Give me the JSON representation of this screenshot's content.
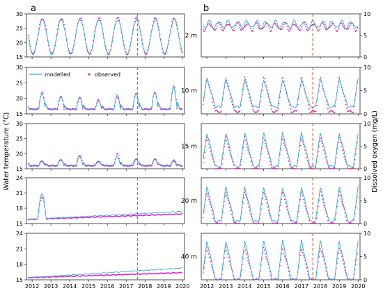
{
  "figure": {
    "panel_labels": [
      "a",
      "b"
    ],
    "left_ylabel": "Water temperature (°C)",
    "right_ylabel": "Dissolved oxygen (mg/L)",
    "depths": [
      "2 m",
      "10 m",
      "15 m",
      "20 m",
      "40 m"
    ],
    "legend": {
      "modelled": "modelled",
      "observed": "observed"
    },
    "colors": {
      "modelled": "#2aa7d8",
      "observed": "#e020d0",
      "divider": "#e8591a"
    }
  },
  "chart_data": [
    {
      "type": "line",
      "panel": "a",
      "depth": "2 m",
      "xlim": [
        2011.7,
        2020.1
      ],
      "ylim": [
        15,
        30
      ],
      "yticks": [
        "15",
        "20",
        "25",
        "30"
      ],
      "xticks": [
        "2012",
        "2013",
        "2014",
        "2015",
        "2016",
        "2017",
        "2018",
        "2019",
        "2020"
      ],
      "series": [
        {
          "name": "modelled",
          "style": "seasonal",
          "min": 16,
          "max": 28
        },
        {
          "name": "observed",
          "style": "seasonal",
          "min": 16,
          "max": 28.5
        }
      ],
      "divider_x": 2017.6
    },
    {
      "type": "line",
      "panel": "a",
      "depth": "10 m",
      "xlim": [
        2011.7,
        2020.1
      ],
      "ylim": [
        15,
        30
      ],
      "yticks": [
        "15",
        "20",
        "25",
        "30"
      ],
      "xticks": [
        "2012",
        "2013",
        "2014",
        "2015",
        "2016",
        "2017",
        "2018",
        "2019",
        "2020"
      ],
      "series": [
        {
          "name": "modelled",
          "style": "mixing",
          "min": 16.5,
          "peaks": [
            22.5,
            21.5,
            20.5,
            20.5,
            19,
            21,
            21.5,
            22,
            23.5
          ]
        },
        {
          "name": "observed",
          "style": "mixing",
          "min": 16.5,
          "peaks": [
            23.5,
            22,
            20.5,
            20,
            19.5,
            20.5,
            21.5,
            22,
            24
          ]
        }
      ],
      "divider_x": 2017.6
    },
    {
      "type": "line",
      "panel": "a",
      "depth": "15 m",
      "xlim": [
        2011.7,
        2020.1
      ],
      "ylim": [
        15,
        30
      ],
      "yticks": [
        "15",
        "20",
        "25",
        "30"
      ],
      "xticks": [
        "2012",
        "2013",
        "2014",
        "2015",
        "2016",
        "2017",
        "2018",
        "2019",
        "2020"
      ],
      "series": [
        {
          "name": "modelled",
          "style": "mixing",
          "min": 16,
          "peaks": [
            22.5,
            17.5,
            18,
            19,
            17.5,
            19,
            18.5,
            18.5,
            18
          ]
        },
        {
          "name": "observed",
          "style": "mixing",
          "min": 16,
          "peaks": [
            21,
            17.5,
            18,
            19.5,
            17.5,
            20,
            18,
            18,
            17.5
          ]
        }
      ],
      "divider_x": 2017.6
    },
    {
      "type": "line",
      "panel": "a",
      "depth": "20 m",
      "xlim": [
        2011.7,
        2020.1
      ],
      "ylim": [
        15,
        24
      ],
      "yticks": [
        "15",
        "18",
        "21",
        "24"
      ],
      "xticks": [
        "2012",
        "2013",
        "2014",
        "2015",
        "2016",
        "2017",
        "2018",
        "2019",
        "2020"
      ],
      "series": [
        {
          "name": "modelled",
          "style": "trend",
          "start": 15.8,
          "end": 17.4,
          "event_peak": 20.9
        },
        {
          "name": "observed",
          "style": "trend",
          "start": 15.8,
          "end": 16.9,
          "event_peak": 20.2
        }
      ],
      "divider_x": 2017.6
    },
    {
      "type": "line",
      "panel": "a",
      "depth": "40 m",
      "xlim": [
        2011.7,
        2020.1
      ],
      "ylim": [
        15,
        24
      ],
      "yticks": [
        "15",
        "18",
        "21",
        "24"
      ],
      "xticks": [
        "2012",
        "2013",
        "2014",
        "2015",
        "2016",
        "2017",
        "2018",
        "2019",
        "2020"
      ],
      "series": [
        {
          "name": "modelled",
          "style": "trend",
          "start": 15.4,
          "end": 17.3,
          "event_peak": 15.4
        },
        {
          "name": "observed",
          "style": "trend",
          "start": 15.4,
          "end": 16.4,
          "event_peak": 15.4
        }
      ],
      "divider_x": 2017.6
    },
    {
      "type": "line",
      "panel": "b",
      "depth": "2 m",
      "xlim": [
        2011.7,
        2020.1
      ],
      "ylim": [
        0,
        10
      ],
      "yticks": [
        "0",
        "5",
        "10"
      ],
      "xticks": [
        "2012",
        "2013",
        "2014",
        "2015",
        "2016",
        "2017",
        "2018",
        "2019",
        "2020"
      ],
      "series": [
        {
          "name": "modelled",
          "style": "do_surface",
          "level": 7.5
        },
        {
          "name": "observed",
          "style": "do_surface",
          "level": 7.0
        }
      ],
      "divider_x": 2017.6
    },
    {
      "type": "line",
      "panel": "b",
      "depth": "10 m",
      "xlim": [
        2011.7,
        2020.1
      ],
      "ylim": [
        0,
        10
      ],
      "yticks": [
        "0",
        "5",
        "10"
      ],
      "xticks": [
        "2012",
        "2013",
        "2014",
        "2015",
        "2016",
        "2017",
        "2018",
        "2019",
        "2020"
      ],
      "series": [
        {
          "name": "modelled",
          "style": "do_cycle",
          "max": 7.5,
          "min": 1.5
        },
        {
          "name": "observed",
          "style": "do_cycle",
          "max": 8,
          "min": 0.5
        }
      ],
      "divider_x": 2017.6
    },
    {
      "type": "line",
      "panel": "b",
      "depth": "15 m",
      "xlim": [
        2011.7,
        2020.1
      ],
      "ylim": [
        0,
        10
      ],
      "yticks": [
        "0",
        "5",
        "10"
      ],
      "xticks": [
        "2012",
        "2013",
        "2014",
        "2015",
        "2016",
        "2017",
        "2018",
        "2019",
        "2020"
      ],
      "series": [
        {
          "name": "modelled",
          "style": "do_cycle",
          "max": 8,
          "min": 0.5
        },
        {
          "name": "observed",
          "style": "do_cycle",
          "max": 7,
          "min": 0
        }
      ],
      "divider_x": 2017.6
    },
    {
      "type": "line",
      "panel": "b",
      "depth": "20 m",
      "xlim": [
        2011.7,
        2020.1
      ],
      "ylim": [
        0,
        10
      ],
      "yticks": [
        "0",
        "5",
        "10"
      ],
      "xticks": [
        "2012",
        "2013",
        "2014",
        "2015",
        "2016",
        "2017",
        "2018",
        "2019",
        "2020"
      ],
      "series": [
        {
          "name": "modelled",
          "style": "do_cycle",
          "max": 8,
          "min": 0.5
        },
        {
          "name": "observed",
          "style": "do_cycle",
          "max": 7,
          "min": 0
        }
      ],
      "divider_x": 2017.6
    },
    {
      "type": "line",
      "panel": "b",
      "depth": "40 m",
      "xlim": [
        2011.7,
        2020.1
      ],
      "ylim": [
        0,
        10
      ],
      "yticks": [
        "0",
        "5",
        "10"
      ],
      "xticks": [
        "2012",
        "2013",
        "2014",
        "2015",
        "2016",
        "2017",
        "2018",
        "2019",
        "2020"
      ],
      "series": [
        {
          "name": "modelled",
          "style": "do_cycle",
          "max": 8.5,
          "min": 0
        },
        {
          "name": "observed",
          "style": "do_cycle",
          "max": 7,
          "min": 0
        }
      ],
      "divider_x": 2017.6
    }
  ]
}
